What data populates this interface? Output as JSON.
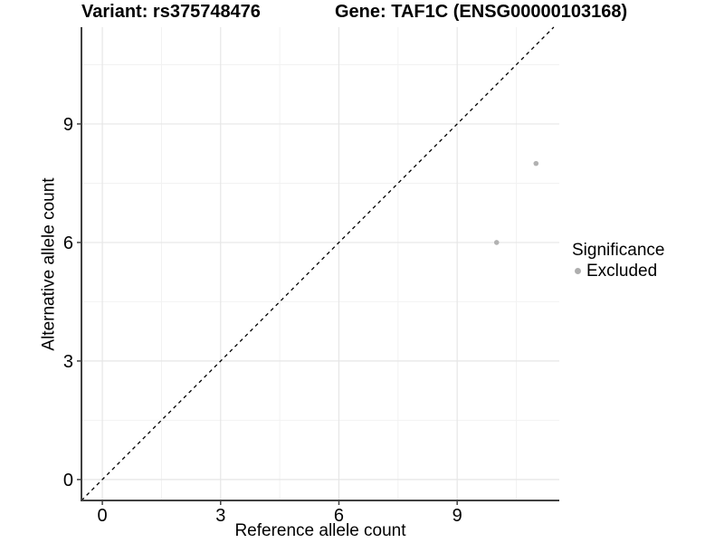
{
  "titles": {
    "variant": "Variant: rs375748476",
    "gene": "Gene: TAF1C (ENSG00000103168)"
  },
  "legend": {
    "title": "Significance",
    "entries": [
      {
        "label": "Excluded",
        "color": "#aeaeae"
      }
    ]
  },
  "chart_data": {
    "type": "scatter",
    "title": "Variant: rs375748476 — Gene: TAF1C (ENSG00000103168)",
    "xlabel": "Reference allele count",
    "ylabel": "Alternative allele count",
    "series": [
      {
        "name": "Excluded",
        "color": "#b2b2b2",
        "points": [
          {
            "x": 10,
            "y": 6
          },
          {
            "x": 11,
            "y": 8
          }
        ]
      }
    ],
    "reference_line": {
      "type": "identity y=x",
      "style": "dashed",
      "color": "#000000"
    },
    "xlim": [
      -0.53,
      11.59
    ],
    "ylim": [
      -0.53,
      11.45
    ],
    "x_ticks": [
      0,
      3,
      6,
      9
    ],
    "y_ticks": [
      0,
      3,
      6,
      9
    ],
    "x_tick_labels": [
      "0",
      "3",
      "6",
      "9"
    ],
    "y_tick_labels": [
      "0",
      "3",
      "6",
      "9"
    ],
    "x_minor": [
      1.5,
      4.5,
      7.5,
      10.5
    ],
    "y_minor": [
      1.5,
      4.5,
      7.5,
      10.5
    ],
    "grid": true,
    "legend_position": "right",
    "point_radius": 2.8,
    "colors": {
      "grid_major": "#e6e6e6",
      "grid_minor": "#f2f2f2",
      "axis": "#404040",
      "ref_line": "#000000"
    }
  }
}
